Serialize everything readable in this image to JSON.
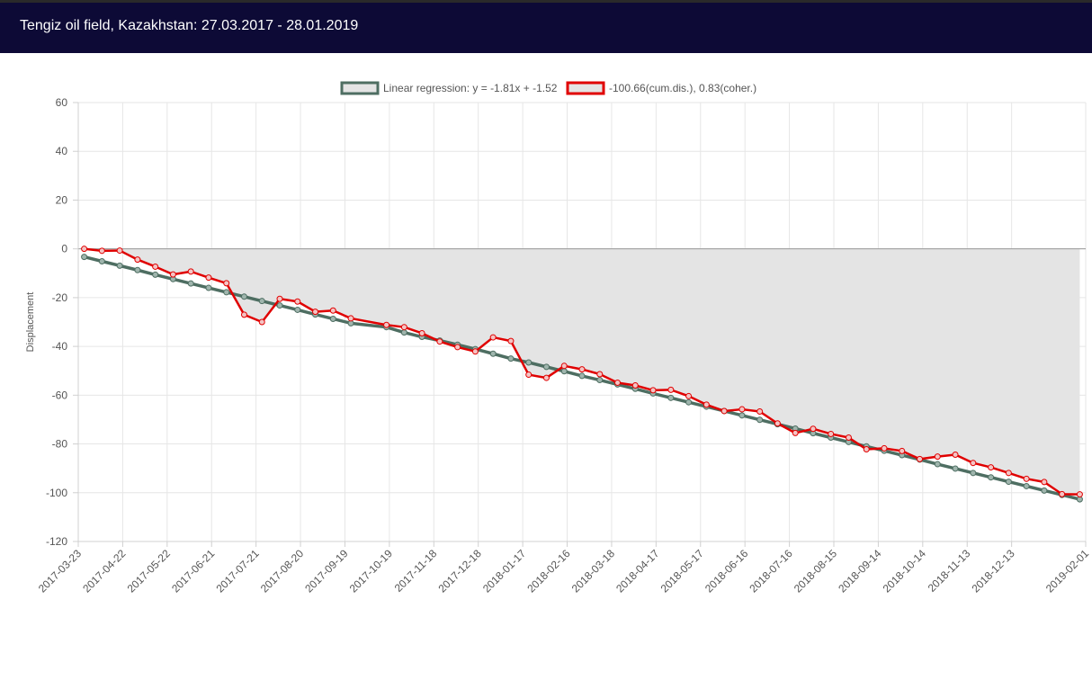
{
  "header": {
    "title": "Tengiz oil field, Kazakhstan: 27.03.2017 - 28.01.2019"
  },
  "colors": {
    "header_bg": "#0d0a36",
    "regression": "#4e6e62",
    "displacement": "#e00000",
    "fill": "#e4e4e4",
    "grid": "#e6e6e6",
    "zero_line": "#999999"
  },
  "chart_data": {
    "type": "line",
    "ylabel": "Displacement",
    "xlabel": "",
    "ylim": [
      -120,
      60
    ],
    "yticks": [
      60,
      40,
      20,
      0,
      -20,
      -40,
      -60,
      -80,
      -100,
      -120
    ],
    "xlim": [
      "2017-03-23",
      "2019-02-01"
    ],
    "xticks": [
      "2017-03-23",
      "2017-04-22",
      "2017-05-22",
      "2017-06-21",
      "2017-07-21",
      "2017-08-20",
      "2017-09-19",
      "2017-10-19",
      "2017-11-18",
      "2017-12-18",
      "2018-01-17",
      "2018-02-16",
      "2018-03-18",
      "2018-04-17",
      "2018-05-17",
      "2018-06-16",
      "2018-07-16",
      "2018-08-15",
      "2018-09-14",
      "2018-10-14",
      "2018-11-13",
      "2018-12-13",
      "2019-02-01"
    ],
    "grid": true,
    "legend": "top-center",
    "series": [
      {
        "name": "Linear regression: y = -1.81x + -1.52",
        "color": "#4e6e62",
        "fill": false,
        "points": [
          [
            "2017-03-27",
            -3.3
          ],
          [
            "2017-04-08",
            -5.1
          ],
          [
            "2017-04-20",
            -6.9
          ],
          [
            "2017-05-02",
            -8.7
          ],
          [
            "2017-05-14",
            -10.6
          ],
          [
            "2017-05-26",
            -12.4
          ],
          [
            "2017-06-07",
            -14.2
          ],
          [
            "2017-06-19",
            -16.0
          ],
          [
            "2017-07-01",
            -17.8
          ],
          [
            "2017-07-13",
            -19.6
          ],
          [
            "2017-07-25",
            -21.4
          ],
          [
            "2017-08-06",
            -23.2
          ],
          [
            "2017-08-18",
            -25.0
          ],
          [
            "2017-08-30",
            -26.9
          ],
          [
            "2017-09-11",
            -28.7
          ],
          [
            "2017-09-23",
            -30.5
          ],
          [
            "2017-10-17",
            -32.1
          ],
          [
            "2017-10-29",
            -34.3
          ],
          [
            "2017-11-10",
            -36.1
          ],
          [
            "2017-11-22",
            -37.6
          ],
          [
            "2017-12-04",
            -39.3
          ],
          [
            "2017-12-16",
            -41.1
          ],
          [
            "2017-12-28",
            -43.0
          ],
          [
            "2018-01-09",
            -45.0
          ],
          [
            "2018-01-21",
            -46.6
          ],
          [
            "2018-02-02",
            -48.4
          ],
          [
            "2018-02-14",
            -50.2
          ],
          [
            "2018-02-26",
            -52.1
          ],
          [
            "2018-03-10",
            -53.8
          ],
          [
            "2018-03-22",
            -55.6
          ],
          [
            "2018-04-03",
            -57.4
          ],
          [
            "2018-04-15",
            -59.3
          ],
          [
            "2018-04-27",
            -61.1
          ],
          [
            "2018-05-09",
            -62.9
          ],
          [
            "2018-05-21",
            -64.7
          ],
          [
            "2018-06-02",
            -66.5
          ],
          [
            "2018-06-14",
            -68.3
          ],
          [
            "2018-06-26",
            -70.1
          ],
          [
            "2018-07-08",
            -71.9
          ],
          [
            "2018-07-20",
            -73.7
          ],
          [
            "2018-08-01",
            -75.6
          ],
          [
            "2018-08-13",
            -77.4
          ],
          [
            "2018-08-25",
            -79.2
          ],
          [
            "2018-09-06",
            -81.0
          ],
          [
            "2018-09-18",
            -82.8
          ],
          [
            "2018-09-30",
            -84.6
          ],
          [
            "2018-10-12",
            -86.4
          ],
          [
            "2018-10-24",
            -88.3
          ],
          [
            "2018-11-05",
            -90.1
          ],
          [
            "2018-11-17",
            -91.9
          ],
          [
            "2018-11-29",
            -93.7
          ],
          [
            "2018-12-11",
            -95.5
          ],
          [
            "2018-12-23",
            -97.3
          ],
          [
            "2019-01-04",
            -99.1
          ],
          [
            "2019-01-16",
            -100.9
          ],
          [
            "2019-01-28",
            -102.7
          ]
        ]
      },
      {
        "name": "-100.66(cum.dis.), 0.83(coher.)",
        "color": "#e00000",
        "fill": true,
        "points": [
          [
            "2017-03-27",
            0.0
          ],
          [
            "2017-04-08",
            -0.8
          ],
          [
            "2017-04-20",
            -0.7
          ],
          [
            "2017-05-02",
            -4.4
          ],
          [
            "2017-05-14",
            -7.3
          ],
          [
            "2017-05-26",
            -10.5
          ],
          [
            "2017-06-07",
            -9.3
          ],
          [
            "2017-06-19",
            -11.8
          ],
          [
            "2017-07-01",
            -14.1
          ],
          [
            "2017-07-13",
            -27.0
          ],
          [
            "2017-07-25",
            -30.0
          ],
          [
            "2017-08-06",
            -20.5
          ],
          [
            "2017-08-18",
            -21.6
          ],
          [
            "2017-08-30",
            -25.8
          ],
          [
            "2017-09-11",
            -25.3
          ],
          [
            "2017-09-23",
            -28.5
          ],
          [
            "2017-10-17",
            -31.2
          ],
          [
            "2017-10-29",
            -32.1
          ],
          [
            "2017-11-10",
            -34.6
          ],
          [
            "2017-11-22",
            -38.0
          ],
          [
            "2017-12-04",
            -40.3
          ],
          [
            "2017-12-16",
            -42.1
          ],
          [
            "2017-12-28",
            -36.3
          ],
          [
            "2018-01-09",
            -37.8
          ],
          [
            "2018-01-21",
            -51.6
          ],
          [
            "2018-02-02",
            -52.9
          ],
          [
            "2018-02-14",
            -48.0
          ],
          [
            "2018-02-26",
            -49.4
          ],
          [
            "2018-03-10",
            -51.4
          ],
          [
            "2018-03-22",
            -54.9
          ],
          [
            "2018-04-03",
            -56.0
          ],
          [
            "2018-04-15",
            -58.0
          ],
          [
            "2018-04-27",
            -57.8
          ],
          [
            "2018-05-09",
            -60.4
          ],
          [
            "2018-05-21",
            -63.9
          ],
          [
            "2018-06-02",
            -66.5
          ],
          [
            "2018-06-14",
            -65.8
          ],
          [
            "2018-06-26",
            -66.7
          ],
          [
            "2018-07-08",
            -71.6
          ],
          [
            "2018-07-20",
            -75.5
          ],
          [
            "2018-08-01",
            -73.8
          ],
          [
            "2018-08-13",
            -75.9
          ],
          [
            "2018-08-25",
            -77.4
          ],
          [
            "2018-09-06",
            -82.2
          ],
          [
            "2018-09-18",
            -81.8
          ],
          [
            "2018-09-30",
            -82.9
          ],
          [
            "2018-10-12",
            -86.2
          ],
          [
            "2018-10-24",
            -85.2
          ],
          [
            "2018-11-05",
            -84.4
          ],
          [
            "2018-11-17",
            -87.8
          ],
          [
            "2018-11-29",
            -89.6
          ],
          [
            "2018-12-11",
            -91.9
          ],
          [
            "2018-12-23",
            -94.3
          ],
          [
            "2019-01-04",
            -95.6
          ],
          [
            "2019-01-16",
            -100.6
          ],
          [
            "2019-01-28",
            -100.66
          ]
        ]
      }
    ]
  }
}
